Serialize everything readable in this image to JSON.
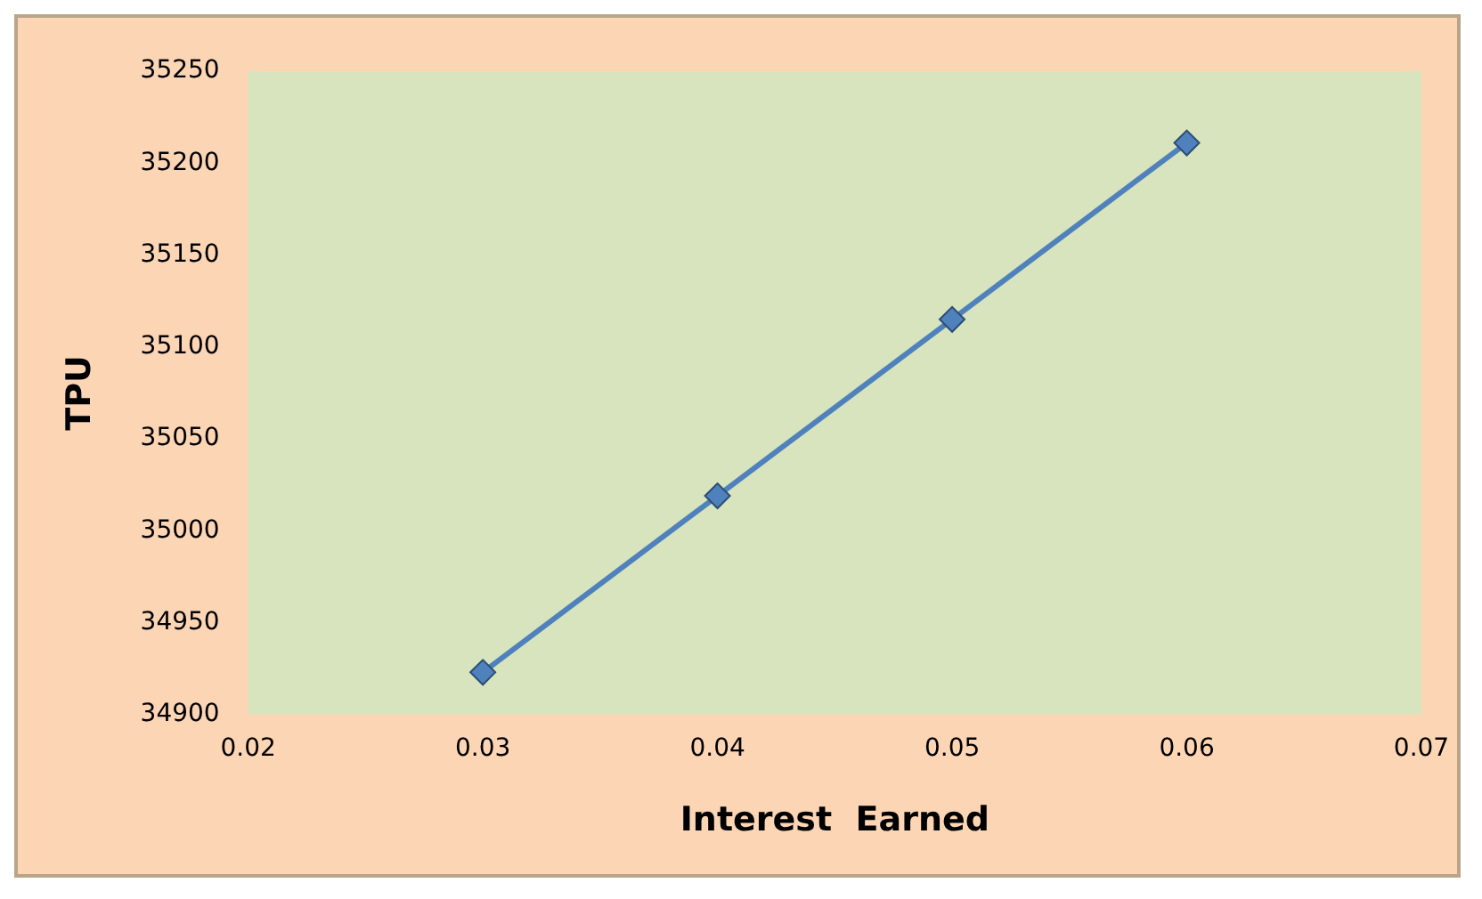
{
  "chart_data": {
    "type": "line",
    "xlabel": "Interest  Earned",
    "ylabel": "TPU",
    "x": [
      0.03,
      0.04,
      0.05,
      0.06
    ],
    "series": [
      {
        "color": "#4f81bd",
        "values": [
          34923,
          35019,
          35115,
          35211
        ]
      }
    ],
    "xlim": [
      0.02,
      0.07
    ],
    "xticks": [
      0.02,
      0.03,
      0.04,
      0.05,
      0.06,
      0.07
    ],
    "ylim": [
      34900,
      35250
    ],
    "yticks": [
      34900,
      34950,
      35000,
      35050,
      35100,
      35150,
      35200,
      35250
    ],
    "grid": false,
    "legend": false,
    "marker": "diamond",
    "line_style": "solid"
  }
}
